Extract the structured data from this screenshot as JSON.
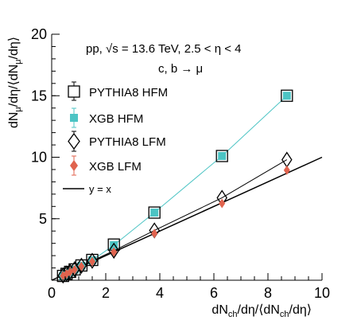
{
  "chart_data": {
    "type": "scatter",
    "title": "",
    "annotations": [
      {
        "id": "line1",
        "text": "pp,   √s = 13.6 TeV, 2.5 <  η < 4"
      },
      {
        "id": "line2",
        "text": "c, b  →  μ"
      }
    ],
    "xlabel": {
      "base": "dN",
      "sub1": "ch",
      "mid": "/dη/⟨dN",
      "sub2": "ch",
      "end": "/dη⟩"
    },
    "ylabel": {
      "base": "dN",
      "sub1": "μ",
      "mid": "/dη/⟨dN",
      "sub2": "μ",
      "end": "/dη⟩"
    },
    "xlim": [
      0,
      10
    ],
    "ylim": [
      0,
      20
    ],
    "xticks": [
      0,
      2,
      4,
      6,
      8,
      10
    ],
    "yticks": [
      5,
      10,
      15,
      20
    ],
    "grid": false,
    "legend_position": "top-left",
    "series": [
      {
        "name": "PYTHIA8 HFM",
        "marker": "open-square",
        "color": "#000000",
        "connect": false,
        "x": [
          0.42,
          0.55,
          0.68,
          0.85,
          1.1,
          1.5,
          2.3,
          3.8,
          6.3,
          8.7
        ],
        "y": [
          0.35,
          0.52,
          0.68,
          0.88,
          1.2,
          1.65,
          2.9,
          5.5,
          10.1,
          15.0
        ]
      },
      {
        "name": "XGB HFM",
        "marker": "filled-square",
        "color": "#4cc4c4",
        "connect": true,
        "x": [
          0.42,
          0.55,
          0.68,
          0.85,
          1.1,
          1.5,
          2.3,
          3.8,
          6.3,
          8.7
        ],
        "y": [
          0.35,
          0.5,
          0.66,
          0.86,
          1.18,
          1.62,
          2.85,
          5.5,
          10.1,
          15.0
        ]
      },
      {
        "name": "PYTHIA8 LFM",
        "marker": "open-diamond",
        "color": "#000000",
        "connect": true,
        "x": [
          0.42,
          0.55,
          0.68,
          0.85,
          1.1,
          1.5,
          2.3,
          3.8,
          6.3,
          8.7
        ],
        "y": [
          0.38,
          0.55,
          0.7,
          0.9,
          1.18,
          1.58,
          2.4,
          4.05,
          6.7,
          9.8
        ]
      },
      {
        "name": "XGB LFM",
        "marker": "filled-diamond",
        "color": "#e0634e",
        "connect": false,
        "x": [
          0.42,
          0.55,
          0.68,
          0.85,
          1.1,
          1.5,
          2.3,
          3.8,
          6.3,
          8.7
        ],
        "y": [
          0.36,
          0.52,
          0.67,
          0.86,
          1.13,
          1.52,
          2.3,
          3.8,
          6.25,
          8.95
        ]
      }
    ],
    "reference_line": {
      "name": "y = x",
      "color": "#000000",
      "x": [
        0,
        10
      ],
      "y": [
        0,
        10
      ]
    }
  }
}
